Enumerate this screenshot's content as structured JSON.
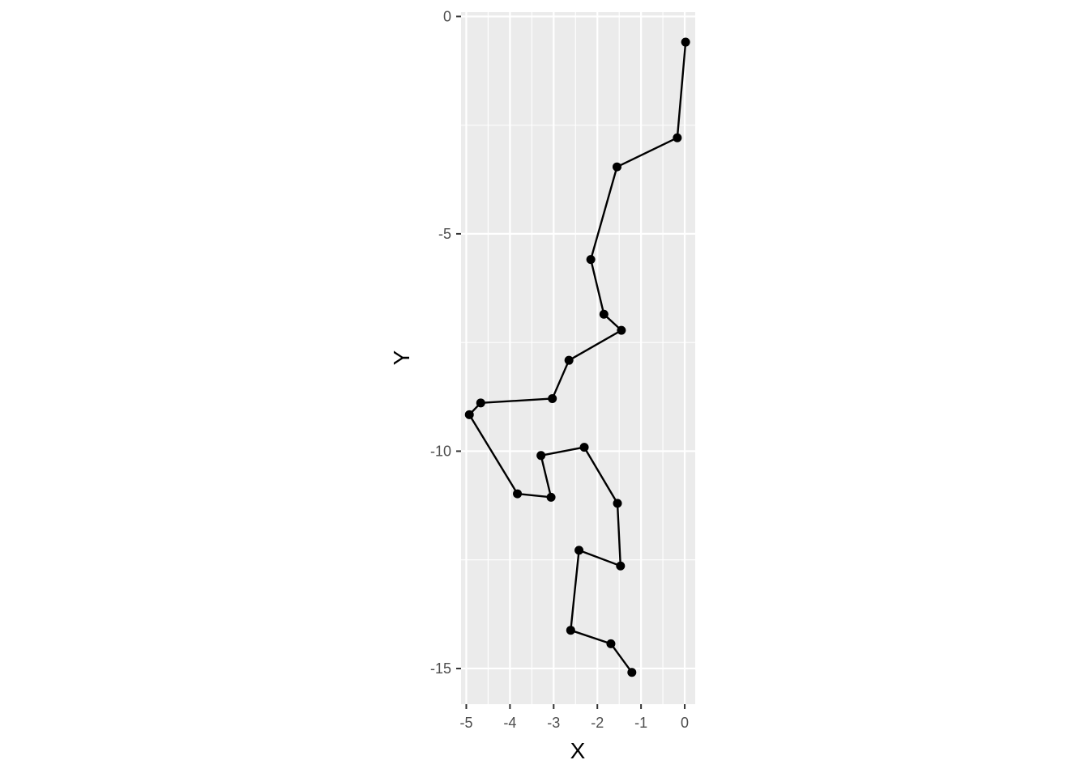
{
  "chart_data": {
    "type": "line",
    "title": "",
    "xlabel": "X",
    "ylabel": "Y",
    "xlim": [
      -5.12,
      0.24
    ],
    "ylim": [
      -15.82,
      0.1
    ],
    "x_ticks": [
      -5,
      -4,
      -3,
      -2,
      -1,
      0
    ],
    "y_ticks": [
      0,
      -5,
      -10,
      -15
    ],
    "x_tick_labels": [
      "-5",
      "-4",
      "-3",
      "-2",
      "-1",
      "0"
    ],
    "y_tick_labels": [
      "0",
      "-5",
      "-10",
      "-15"
    ],
    "grid": true,
    "markers": true,
    "colors": {
      "panel": "#ebebeb",
      "grid": "#ffffff",
      "line": "#000000",
      "tick": "#333333"
    },
    "series": [
      {
        "x": [
          0.02,
          -0.17,
          -1.55,
          -2.15,
          -1.85,
          -1.45,
          -2.65,
          -3.03,
          -4.67,
          -4.93,
          -3.83,
          -3.06,
          -3.29,
          -2.3,
          -1.54,
          -1.47,
          -2.42,
          -2.61,
          -1.69,
          -1.21
        ],
        "y": [
          -0.59,
          -2.79,
          -3.46,
          -5.59,
          -6.85,
          -7.22,
          -7.91,
          -8.79,
          -8.89,
          -9.16,
          -10.98,
          -11.06,
          -10.1,
          -9.91,
          -11.2,
          -12.64,
          -12.28,
          -14.12,
          -14.43,
          -15.09
        ]
      }
    ]
  }
}
